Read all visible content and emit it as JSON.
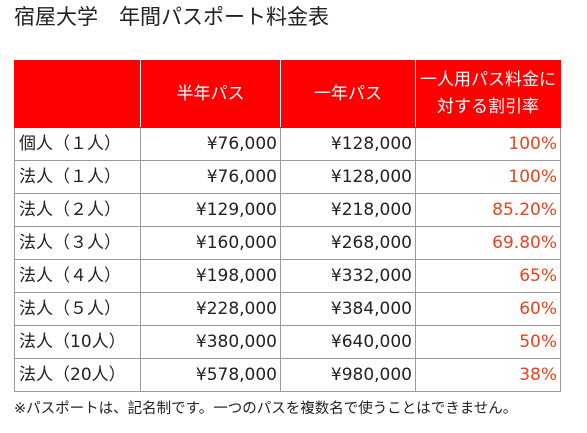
{
  "title": "宿屋大学　年間パスポート料金表",
  "table": {
    "header": {
      "type": "",
      "half_year": "半年パス",
      "one_year": "一年パス",
      "discount_line1": "一人用パス料金に",
      "discount_line2": "対する割引率"
    },
    "rows": [
      {
        "type": "個人（１人）",
        "half_year": "¥76,000",
        "one_year": "¥128,000",
        "discount": "100%"
      },
      {
        "type": "法人（１人）",
        "half_year": "¥76,000",
        "one_year": "¥128,000",
        "discount": "100%"
      },
      {
        "type": "法人（２人）",
        "half_year": "¥129,000",
        "one_year": "¥218,000",
        "discount": "85.20%"
      },
      {
        "type": "法人（３人）",
        "half_year": "¥160,000",
        "one_year": "¥268,000",
        "discount": "69.80%"
      },
      {
        "type": "法人（４人）",
        "half_year": "¥198,000",
        "one_year": "¥332,000",
        "discount": "65%"
      },
      {
        "type": "法人（５人）",
        "half_year": "¥228,000",
        "one_year": "¥384,000",
        "discount": "60%"
      },
      {
        "type": "法人（10人）",
        "half_year": "¥380,000",
        "one_year": "¥640,000",
        "discount": "50%"
      },
      {
        "type": "法人（20人）",
        "half_year": "¥578,000",
        "one_year": "¥980,000",
        "discount": "38%"
      }
    ]
  },
  "footnote": "※パスポートは、記名制です。一つのパスを複数名で使うことはできません。",
  "colors": {
    "header_bg": "#ff0000",
    "header_text": "#ffffff",
    "discount_text": "#e8431c",
    "border": "#9a9a9a"
  }
}
